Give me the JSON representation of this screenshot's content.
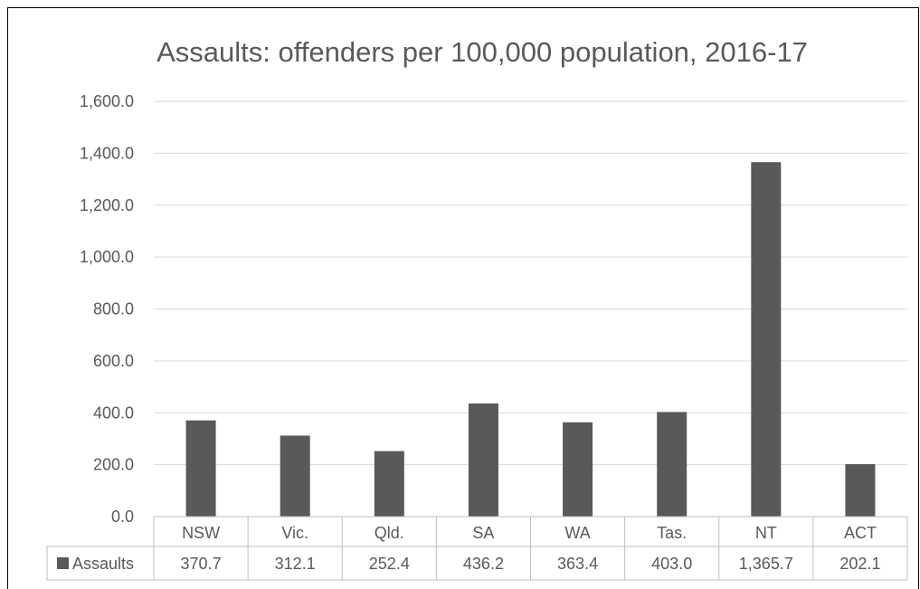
{
  "chart_data": {
    "type": "bar",
    "title": "Assaults: offenders per 100,000 population, 2016-17",
    "xlabel": "",
    "ylabel": "",
    "categories": [
      "NSW",
      "Vic.",
      "Qld.",
      "SA",
      "WA",
      "Tas.",
      "NT",
      "ACT"
    ],
    "series": [
      {
        "name": "Assaults",
        "values": [
          370.7,
          312.1,
          252.4,
          436.2,
          363.4,
          403.0,
          1365.7,
          202.1
        ],
        "value_labels": [
          "370.7",
          "312.1",
          "252.4",
          "436.2",
          "363.4",
          "403.0",
          "1,365.7",
          "202.1"
        ]
      }
    ],
    "ylim": [
      0,
      1600
    ],
    "yticks": [
      0,
      200,
      400,
      600,
      800,
      1000,
      1200,
      1400,
      1600
    ],
    "ytick_labels": [
      "0.0",
      "200.0",
      "400.0",
      "600.0",
      "800.0",
      "1,000.0",
      "1,200.0",
      "1,400.0",
      "1,600.0"
    ],
    "grid": true,
    "legend": "data-table",
    "data_table": true,
    "bar_color": "#595959",
    "grid_color": "#d9d9d9",
    "table_border_color": "#bfbfbf"
  }
}
